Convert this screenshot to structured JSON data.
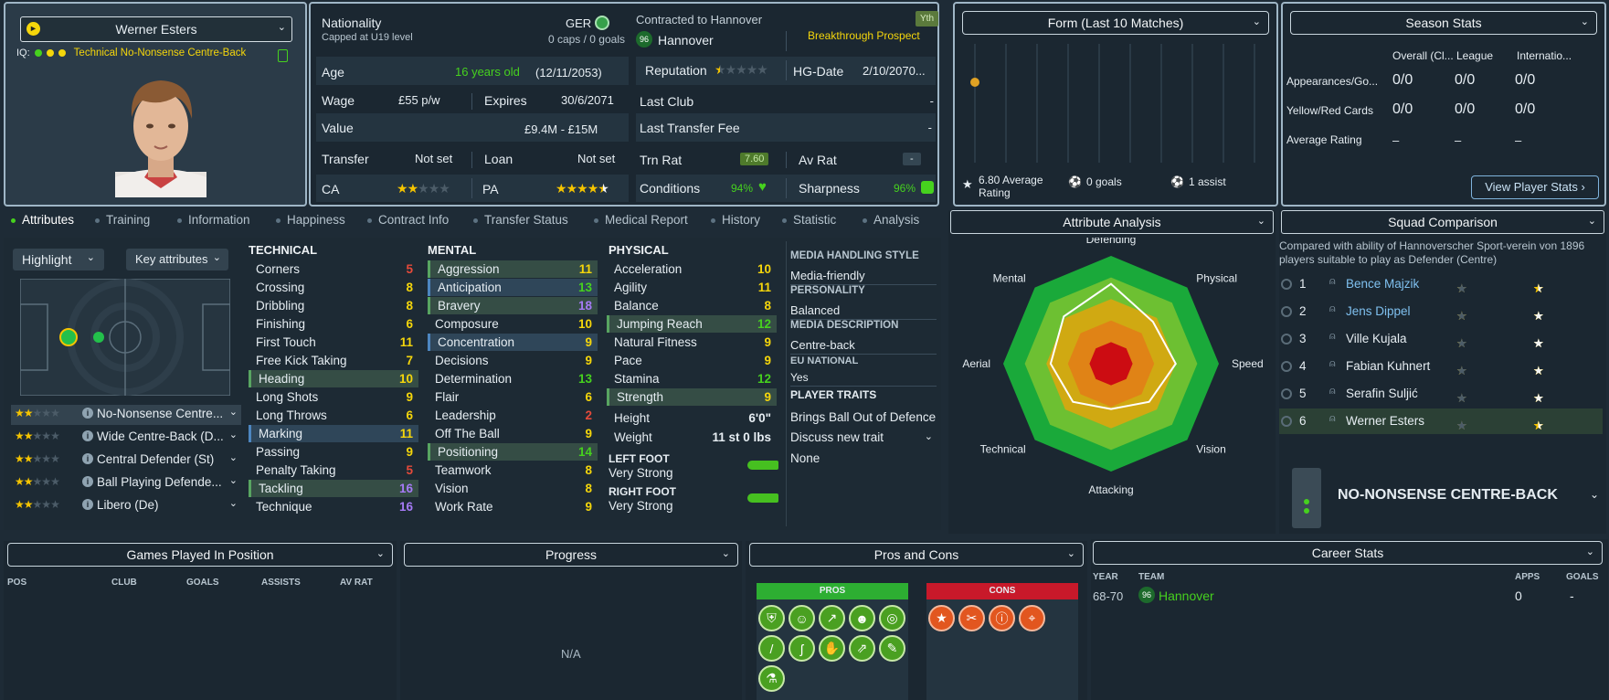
{
  "profile": {
    "name": "Werner Esters",
    "iq_label": "IQ:",
    "role_text": "Technical No-Nonsense Centre-Back"
  },
  "info": {
    "nationality_label": "Nationality",
    "nationality_value": "GER",
    "capped_text": "Capped at U19 level",
    "caps_text": "0 caps / 0 goals",
    "age_label": "Age",
    "age_value": "16 years old",
    "dob": "(12/11/2053)",
    "wage_label": "Wage",
    "wage_value": "£55 p/w",
    "expires_label": "Expires",
    "expires_value": "30/6/2071",
    "value_label": "Value",
    "value_value": "£9.4M - £15M",
    "transfer_label": "Transfer",
    "transfer_value": "Not set",
    "loan_label": "Loan",
    "loan_value": "Not set",
    "ca_label": "CA",
    "ca_stars": 2,
    "pa_label": "PA",
    "pa_stars": 4.5
  },
  "contract": {
    "contracted_label": "Contracted to Hannover",
    "club": "Hannover",
    "yth_badge": "Yth",
    "prospect": "Breakthrough Prospect",
    "reputation_label": "Reputation",
    "reputation_stars": 0.5,
    "hg_label": "HG-Date",
    "hg_value": "2/10/2070...",
    "last_club_label": "Last Club",
    "last_club_value": "-",
    "last_fee_label": "Last Transfer Fee",
    "last_fee_value": "-",
    "trn_label": "Trn Rat",
    "trn_value": "7.60",
    "av_label": "Av Rat",
    "av_value": "-",
    "conditions_label": "Conditions",
    "conditions_value": "94%",
    "sharpness_label": "Sharpness",
    "sharpness_value": "96%"
  },
  "form": {
    "title": "Form (Last 10 Matches)",
    "avg_rating": "6.80 Average Rating",
    "goals": "0 goals",
    "assists": "1 assist"
  },
  "season": {
    "title": "Season Stats",
    "col1": "Overall (Cl...",
    "col2": "League",
    "col3": "Internatio...",
    "rows": [
      {
        "label": "Appearances/Go...",
        "v1": "0/0",
        "v2": "0/0",
        "v3": "0/0"
      },
      {
        "label": "Yellow/Red Cards",
        "v1": "0/0",
        "v2": "0/0",
        "v3": "0/0"
      },
      {
        "label": "Average Rating",
        "v1": "–",
        "v2": "–",
        "v3": "–"
      }
    ],
    "view_button": "View Player Stats"
  },
  "tabs": [
    "Attributes",
    "Training",
    "Information",
    "Happiness",
    "Contract Info",
    "Transfer Status",
    "Medical Report",
    "History",
    "Statistic",
    "Analysis"
  ],
  "left": {
    "highlight": "Highlight",
    "key_attributes": "Key attributes",
    "roles": [
      {
        "name": "No-Nonsense Centre...",
        "stars": 2
      },
      {
        "name": "Wide Centre-Back (D...",
        "stars": 2
      },
      {
        "name": "Central Defender (St)",
        "stars": 2
      },
      {
        "name": "Ball Playing Defende...",
        "stars": 2
      },
      {
        "name": "Libero (De)",
        "stars": 2
      }
    ]
  },
  "technical": {
    "title": "TECHNICAL",
    "items": [
      {
        "name": "Corners",
        "value": "5"
      },
      {
        "name": "Crossing",
        "value": "8"
      },
      {
        "name": "Dribbling",
        "value": "8"
      },
      {
        "name": "Finishing",
        "value": "6"
      },
      {
        "name": "First Touch",
        "value": "11"
      },
      {
        "name": "Free Kick Taking",
        "value": "7"
      },
      {
        "name": "Heading",
        "value": "10"
      },
      {
        "name": "Long Shots",
        "value": "9"
      },
      {
        "name": "Long Throws",
        "value": "6"
      },
      {
        "name": "Marking",
        "value": "11"
      },
      {
        "name": "Passing",
        "value": "9"
      },
      {
        "name": "Penalty Taking",
        "value": "5"
      },
      {
        "name": "Tackling",
        "value": "16"
      },
      {
        "name": "Technique",
        "value": "16"
      }
    ]
  },
  "mental": {
    "title": "MENTAL",
    "items": [
      {
        "name": "Aggression",
        "value": "11"
      },
      {
        "name": "Anticipation",
        "value": "13"
      },
      {
        "name": "Bravery",
        "value": "18"
      },
      {
        "name": "Composure",
        "value": "10"
      },
      {
        "name": "Concentration",
        "value": "9"
      },
      {
        "name": "Decisions",
        "value": "9"
      },
      {
        "name": "Determination",
        "value": "13"
      },
      {
        "name": "Flair",
        "value": "6"
      },
      {
        "name": "Leadership",
        "value": "2"
      },
      {
        "name": "Off The Ball",
        "value": "9"
      },
      {
        "name": "Positioning",
        "value": "14"
      },
      {
        "name": "Teamwork",
        "value": "8"
      },
      {
        "name": "Vision",
        "value": "8"
      },
      {
        "name": "Work Rate",
        "value": "9"
      }
    ]
  },
  "physical": {
    "title": "PHYSICAL",
    "items": [
      {
        "name": "Acceleration",
        "value": "10"
      },
      {
        "name": "Agility",
        "value": "11"
      },
      {
        "name": "Balance",
        "value": "8"
      },
      {
        "name": "Jumping Reach",
        "value": "12"
      },
      {
        "name": "Natural Fitness",
        "value": "9"
      },
      {
        "name": "Pace",
        "value": "9"
      },
      {
        "name": "Stamina",
        "value": "12"
      },
      {
        "name": "Strength",
        "value": "9"
      }
    ],
    "height_label": "Height",
    "height_value": "6'0\"",
    "weight_label": "Weight",
    "weight_value": "11 st 0 lbs",
    "left_foot_label": "LEFT FOOT",
    "left_foot_value": "Very Strong",
    "right_foot_label": "RIGHT FOOT",
    "right_foot_value": "Very Strong"
  },
  "media": {
    "style_label": "MEDIA HANDLING STYLE",
    "style_value": "Media-friendly",
    "personality_label": "PERSONALITY",
    "personality_value": "Balanced",
    "description_label": "MEDIA DESCRIPTION",
    "description_value": "Centre-back",
    "eu_label": "EU NATIONAL",
    "eu_value": "Yes",
    "traits_label": "PLAYER TRAITS",
    "trait_1": "Brings Ball Out of Defence",
    "discuss": "Discuss new trait",
    "none": "None"
  },
  "analysis": {
    "title": "Attribute Analysis",
    "labels": [
      "Defending",
      "Physical",
      "Speed",
      "Vision",
      "Attacking",
      "Technical",
      "Aerial",
      "Mental"
    ],
    "values": [
      0.74,
      0.55,
      0.6,
      0.5,
      0.42,
      0.5,
      0.56,
      0.62
    ]
  },
  "squad": {
    "title": "Squad Comparison",
    "desc": "Compared with ability of Hannoverscher Sport-verein von 1896 players suitable to play as Defender (Centre)",
    "rows": [
      {
        "rank": "1",
        "name": "Bence Majzik",
        "ca": 2.5,
        "pa": 4.5,
        "link": true
      },
      {
        "rank": "2",
        "name": "Jens Dippel",
        "ca": 3,
        "pa": 3.5,
        "link": true
      },
      {
        "rank": "3",
        "name": "Ville Kujala",
        "ca": 2.5,
        "pa": 3,
        "link": false
      },
      {
        "rank": "4",
        "name": "Fabian Kuhnert",
        "ca": 2.5,
        "pa": 4,
        "link": false
      },
      {
        "rank": "5",
        "name": "Serafin Suljić",
        "ca": 2,
        "pa": 3.5,
        "link": false
      },
      {
        "rank": "6",
        "name": "Werner Esters",
        "ca": 2,
        "pa": 4.5,
        "link": false
      }
    ],
    "role": "NO-NONSENSE CENTRE-BACK"
  },
  "games": {
    "title": "Games Played In Position",
    "cols": [
      "POS",
      "CLUB",
      "GOALS",
      "ASSISTS",
      "AV RAT"
    ]
  },
  "progress": {
    "title": "Progress",
    "na": "N/A"
  },
  "proscons": {
    "title": "Pros and Cons",
    "pros": "PROS",
    "cons": "CONS"
  },
  "career": {
    "title": "Career Stats",
    "year_h": "YEAR",
    "team_h": "TEAM",
    "apps_h": "APPS",
    "goals_h": "GOALS",
    "year": "68-70",
    "team": "Hannover",
    "apps": "0",
    "goals": "-"
  },
  "colors": {
    "green": "#46d11e",
    "yellow": "#f5d60b",
    "red": "#e64a3a",
    "purple": "#a57af5"
  }
}
